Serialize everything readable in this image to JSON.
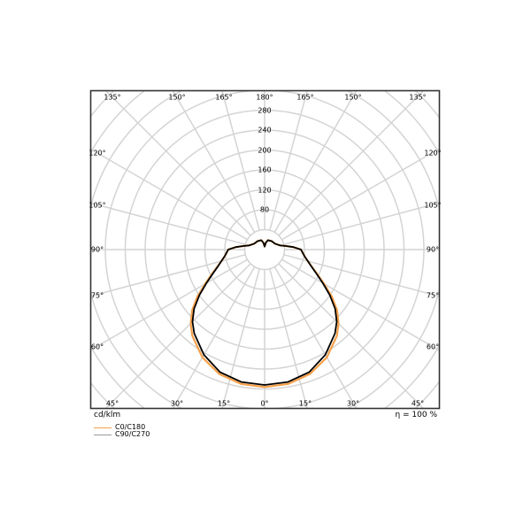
{
  "chart_data": {
    "type": "polar-line",
    "unit_label": "cd/klm",
    "efficiency_label": "η = 100 %",
    "radial_ticks": [
      80,
      120,
      160,
      200,
      240,
      280
    ],
    "radial_ring_step": 40,
    "angle_step_deg": 15,
    "angle_labels": {
      "top": [
        "135°",
        "150°",
        "165°",
        "180°",
        "165°",
        "150°",
        "135°"
      ],
      "left": [
        "120°",
        "105°",
        "90°",
        "75°",
        "60°"
      ],
      "right": [
        "120°",
        "105°",
        "90°",
        "75°",
        "60°"
      ],
      "bottom": [
        "45°",
        "30°",
        "15°",
        "0°",
        "15°",
        "30°",
        "45°"
      ]
    },
    "grid": true,
    "legend_placement": "bottom-left",
    "gamma_deg": [
      0,
      10,
      20,
      30,
      40,
      45,
      50,
      55,
      60,
      65,
      70,
      75,
      80,
      85,
      90,
      95,
      100,
      105,
      120,
      140,
      160,
      170,
      180
    ],
    "series": [
      {
        "name": "C0/C180",
        "color": "#f5a04a",
        "values": [
          276,
          274,
          266,
          250,
          226,
          210,
          190,
          165,
          138,
          117,
          101,
          90,
          82,
          77,
          73,
          58,
          42,
          32,
          24,
          22,
          20,
          14,
          6
        ]
      },
      {
        "name": "C90/C270",
        "color": "#000000",
        "legend_color": "#999999",
        "values": [
          272,
          270,
          262,
          244,
          220,
          205,
          185,
          160,
          135,
          115,
          100,
          90,
          82,
          77,
          73,
          58,
          42,
          32,
          24,
          22,
          20,
          14,
          6
        ]
      }
    ]
  }
}
